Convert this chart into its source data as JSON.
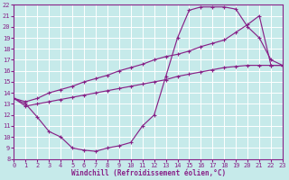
{
  "xlabel": "Windchill (Refroidissement éolien,°C)",
  "bg_color": "#c6eaea",
  "grid_color": "#ffffff",
  "line_color": "#882288",
  "xlim": [
    0,
    23
  ],
  "ylim": [
    8,
    22
  ],
  "xticks": [
    0,
    1,
    2,
    3,
    4,
    5,
    6,
    7,
    8,
    9,
    10,
    11,
    12,
    13,
    14,
    15,
    16,
    17,
    18,
    19,
    20,
    21,
    22,
    23
  ],
  "yticks": [
    8,
    9,
    10,
    11,
    12,
    13,
    14,
    15,
    16,
    17,
    18,
    19,
    20,
    21,
    22
  ],
  "curve1_x": [
    0,
    1,
    2,
    3,
    4,
    5,
    6,
    7,
    8,
    9,
    10,
    11,
    12,
    13,
    14,
    15,
    16,
    17,
    18,
    19,
    20,
    21,
    22,
    23
  ],
  "curve1_y": [
    13.5,
    13.0,
    11.8,
    10.5,
    10.0,
    9.0,
    8.8,
    8.7,
    9.0,
    9.2,
    9.5,
    11.0,
    12.0,
    15.5,
    19.0,
    21.5,
    21.8,
    21.8,
    21.8,
    21.6,
    20.0,
    19.0,
    17.0,
    16.5
  ],
  "curve2_x": [
    0,
    1,
    2,
    3,
    4,
    5,
    6,
    7,
    8,
    9,
    10,
    11,
    12,
    13,
    14,
    15,
    16,
    17,
    18,
    19,
    20,
    21,
    22,
    23
  ],
  "curve2_y": [
    13.5,
    13.2,
    13.5,
    14.0,
    14.3,
    14.6,
    15.0,
    15.3,
    15.6,
    16.0,
    16.3,
    16.6,
    17.0,
    17.3,
    17.5,
    17.8,
    18.2,
    18.5,
    18.8,
    19.5,
    20.2,
    21.0,
    16.5,
    16.5
  ],
  "curve3_x": [
    0,
    1,
    2,
    3,
    4,
    5,
    6,
    7,
    8,
    9,
    10,
    11,
    12,
    13,
    14,
    15,
    16,
    17,
    18,
    19,
    20,
    21,
    22,
    23
  ],
  "curve3_y": [
    13.5,
    12.8,
    13.0,
    13.2,
    13.4,
    13.6,
    13.8,
    14.0,
    14.2,
    14.4,
    14.6,
    14.8,
    15.0,
    15.2,
    15.5,
    15.7,
    15.9,
    16.1,
    16.3,
    16.4,
    16.5,
    16.5,
    16.5,
    16.5
  ]
}
